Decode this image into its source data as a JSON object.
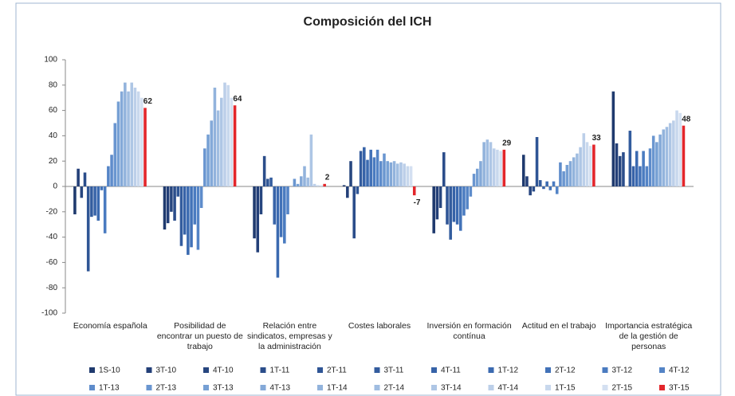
{
  "chart_data": {
    "type": "bar",
    "title": "Composición del ICH",
    "categories": [
      "Economía española",
      "Posibilidad de encontrar un puesto de trabajo",
      "Relación entre sindicatos, empresas y la administración",
      "Costes laborales",
      "Inversión en formación contínua",
      "Actitud en el trabajo",
      "Importancia estratégica de la gestión de personas"
    ],
    "series": [
      {
        "name": "1S-10",
        "color": "#1f3a6e",
        "values": [
          -22,
          -34,
          -41,
          1,
          -37,
          25,
          75
        ]
      },
      {
        "name": "3T-10",
        "color": "#233f78",
        "values": [
          14,
          -29,
          -52,
          -9,
          -26,
          8,
          34
        ]
      },
      {
        "name": "4T-10",
        "color": "#27467f",
        "values": [
          -9,
          -20,
          -22,
          20,
          -17,
          -7,
          24
        ]
      },
      {
        "name": "1T-11",
        "color": "#2b4d8a",
        "values": [
          11,
          -27,
          24,
          -41,
          27,
          -4,
          27
        ]
      },
      {
        "name": "2T-11",
        "color": "#2f5595",
        "values": [
          -67,
          -8,
          6,
          -6,
          -30,
          39,
          0
        ]
      },
      {
        "name": "3T-11",
        "color": "#335c9e",
        "values": [
          -24,
          -47,
          7,
          28,
          -42,
          5,
          44
        ]
      },
      {
        "name": "4T-11",
        "color": "#3763a8",
        "values": [
          -23,
          -38,
          -30,
          31,
          -28,
          -2,
          16
        ]
      },
      {
        "name": "1T-12",
        "color": "#3b6ab0",
        "values": [
          -27,
          -54,
          -72,
          21,
          -30,
          4,
          28
        ]
      },
      {
        "name": "2T-12",
        "color": "#4272b8",
        "values": [
          -3,
          -48,
          -40,
          29,
          -35,
          -3,
          16
        ]
      },
      {
        "name": "3T-12",
        "color": "#4a7bc0",
        "values": [
          -37,
          -30,
          -45,
          23,
          -23,
          4,
          28
        ]
      },
      {
        "name": "4T-12",
        "color": "#5484c6",
        "values": [
          16,
          -50,
          -22,
          29,
          -18,
          -6,
          16
        ]
      },
      {
        "name": "1T-13",
        "color": "#5e8ccb",
        "values": [
          25,
          -17,
          0,
          20,
          -8,
          19,
          30
        ]
      },
      {
        "name": "2T-13",
        "color": "#6a96d0",
        "values": [
          50,
          30,
          6,
          26,
          10,
          12,
          40
        ]
      },
      {
        "name": "3T-13",
        "color": "#76a0d4",
        "values": [
          67,
          41,
          2,
          20,
          14,
          17,
          35
        ]
      },
      {
        "name": "4T-13",
        "color": "#84a9d8",
        "values": [
          75,
          52,
          8,
          19,
          20,
          20,
          41
        ]
      },
      {
        "name": "1T-14",
        "color": "#92b3dc",
        "values": [
          82,
          78,
          16,
          20,
          35,
          23,
          45
        ]
      },
      {
        "name": "2T-14",
        "color": "#a0bde1",
        "values": [
          75,
          60,
          7,
          18,
          37,
          26,
          47
        ]
      },
      {
        "name": "3T-14",
        "color": "#aec6e5",
        "values": [
          82,
          70,
          41,
          19,
          35,
          31,
          50
        ]
      },
      {
        "name": "4T-14",
        "color": "#bccfe9",
        "values": [
          78,
          82,
          2,
          18,
          30,
          42,
          52
        ]
      },
      {
        "name": "1T-15",
        "color": "#c8d8ed",
        "values": [
          75,
          80,
          1,
          16,
          29,
          35,
          60
        ]
      },
      {
        "name": "2T-15",
        "color": "#d4e0f1",
        "values": [
          70,
          70,
          1,
          16,
          28,
          32,
          58
        ]
      },
      {
        "name": "3T-15",
        "color": "#e3262b",
        "values": [
          62,
          64,
          2,
          -7,
          29,
          33,
          48
        ],
        "show_values": true
      }
    ],
    "ylim": [
      -100,
      100
    ],
    "yticks": [
      -100,
      -80,
      -60,
      -40,
      -20,
      0,
      20,
      40,
      60,
      80,
      100
    ],
    "grid": false
  }
}
